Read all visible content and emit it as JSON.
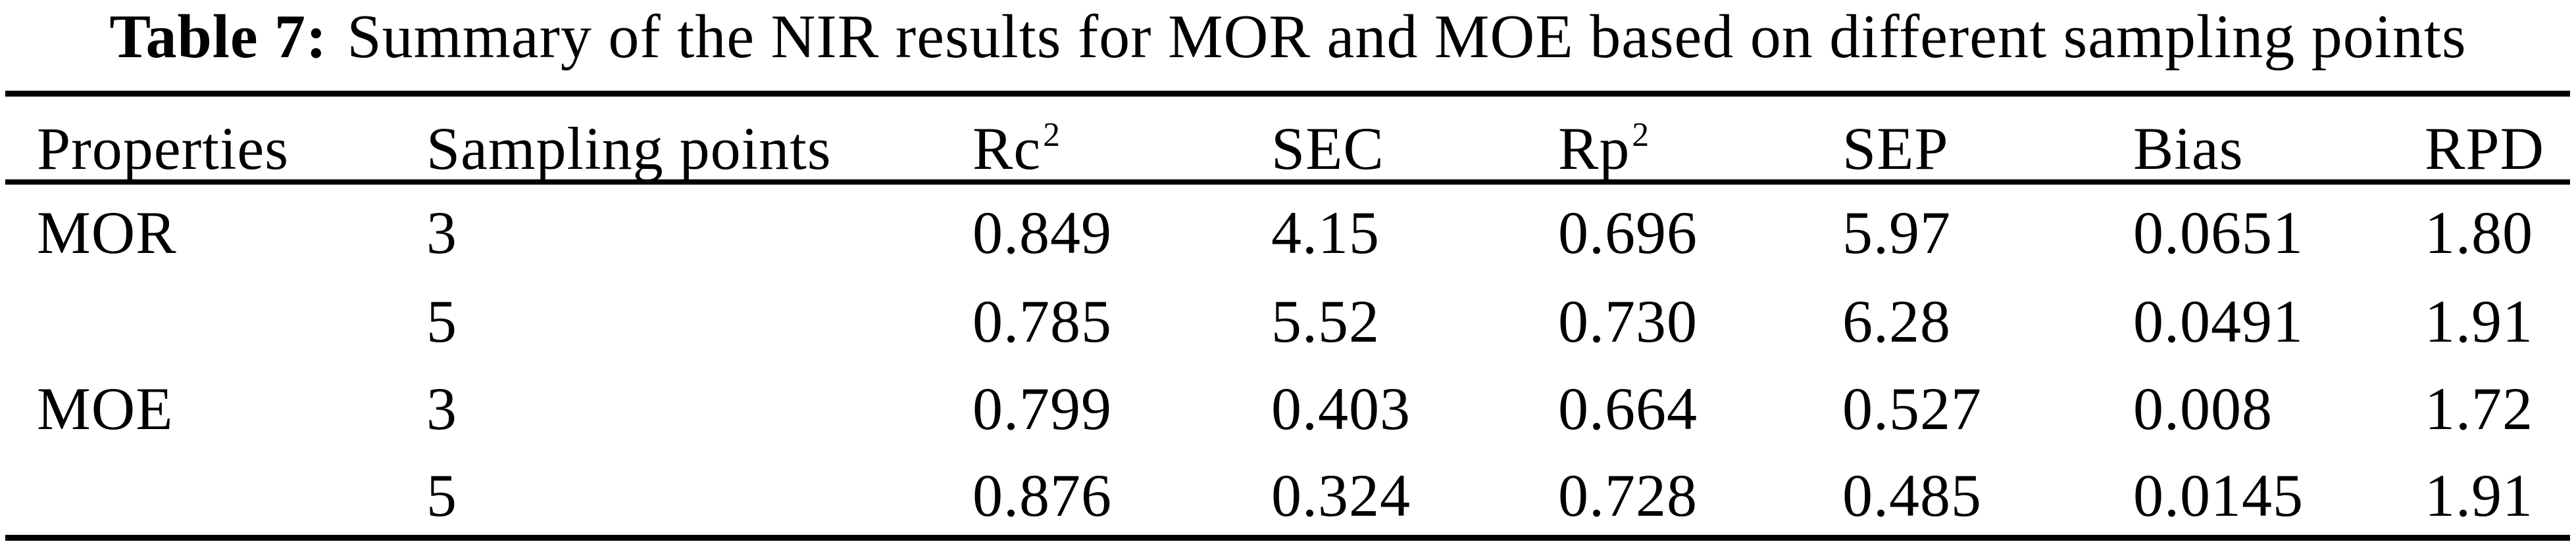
{
  "caption": {
    "label": "Table 7:",
    "text": "Summary of the NIR results for MOR and MOE based on different sampling points"
  },
  "colors": {
    "text": "#000000",
    "background": "#ffffff",
    "rule": "#000000"
  },
  "table": {
    "headers": [
      {
        "base": "Properties",
        "sup": ""
      },
      {
        "base": "Sampling points",
        "sup": ""
      },
      {
        "base": "Rc",
        "sup": "2"
      },
      {
        "base": "SEC",
        "sup": ""
      },
      {
        "base": "Rp",
        "sup": "2"
      },
      {
        "base": "SEP",
        "sup": ""
      },
      {
        "base": "Bias",
        "sup": ""
      },
      {
        "base": "RPD",
        "sup": ""
      }
    ],
    "rows": [
      {
        "cells": [
          "MOR",
          "3",
          "0.849",
          "4.15",
          "0.696",
          "5.97",
          "0.0651",
          "1.80"
        ]
      },
      {
        "cells": [
          "",
          "5",
          "0.785",
          "5.52",
          "0.730",
          "6.28",
          "0.0491",
          "1.91"
        ]
      },
      {
        "cells": [
          "MOE",
          "3",
          "0.799",
          "0.403",
          "0.664",
          "0.527",
          "0.008",
          "1.72"
        ]
      },
      {
        "cells": [
          "",
          "5",
          "0.876",
          "0.324",
          "0.728",
          "0.485",
          "0.0145",
          "1.91"
        ]
      }
    ]
  },
  "chart_data": {
    "type": "table",
    "title": "Table 7: Summary of the NIR results for MOR and MOE based on different sampling points",
    "columns": [
      "Properties",
      "Sampling points",
      "Rc2",
      "SEC",
      "Rp2",
      "SEP",
      "Bias",
      "RPD"
    ],
    "rows": [
      [
        "MOR",
        3,
        0.849,
        4.15,
        0.696,
        5.97,
        0.0651,
        1.8
      ],
      [
        "MOR",
        5,
        0.785,
        5.52,
        0.73,
        6.28,
        0.0491,
        1.91
      ],
      [
        "MOE",
        3,
        0.799,
        0.403,
        0.664,
        0.527,
        0.008,
        1.72
      ],
      [
        "MOE",
        5,
        0.876,
        0.324,
        0.728,
        0.485,
        0.0145,
        1.91
      ]
    ]
  }
}
